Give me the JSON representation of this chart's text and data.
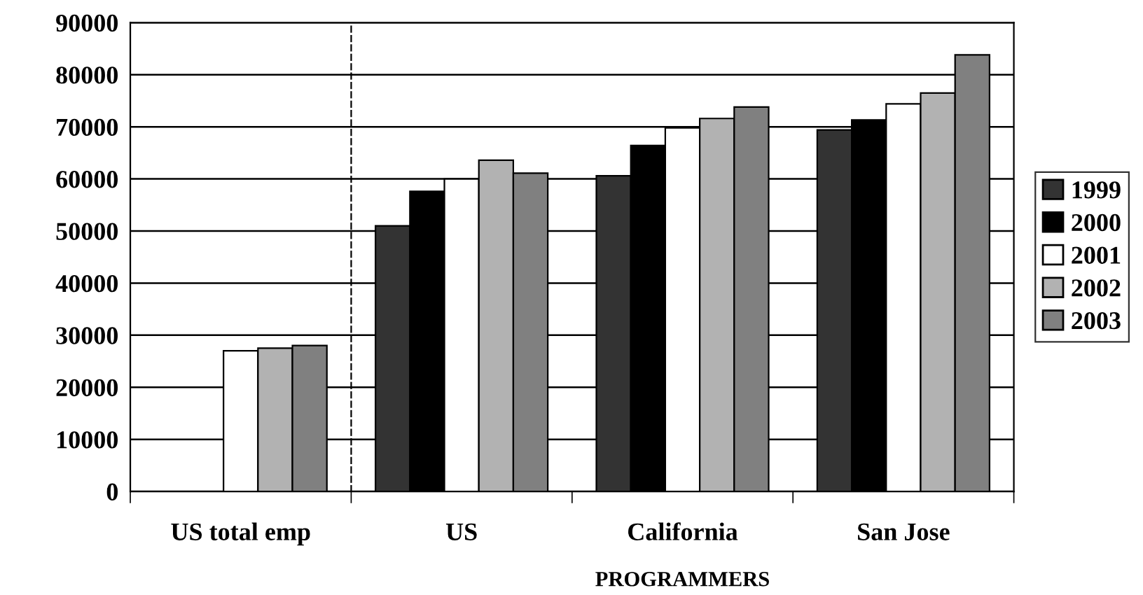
{
  "chart_data": {
    "type": "bar",
    "categories": [
      "US total emp",
      "US",
      "California",
      "San Jose"
    ],
    "series": [
      {
        "name": "1999",
        "color": "#333333",
        "values": [
          null,
          51000,
          60600,
          69400
        ]
      },
      {
        "name": "2000",
        "color": "#000000",
        "values": [
          null,
          57600,
          66400,
          71300
        ]
      },
      {
        "name": "2001",
        "color": "#ffffff",
        "values": [
          27000,
          60000,
          69800,
          74400
        ]
      },
      {
        "name": "2002",
        "color": "#b2b2b2",
        "values": [
          27500,
          63600,
          71600,
          76500
        ]
      },
      {
        "name": "2003",
        "color": "#808080",
        "values": [
          28000,
          61100,
          73800,
          83800
        ]
      }
    ],
    "ylim": [
      0,
      90000
    ],
    "yticks": [
      0,
      10000,
      20000,
      30000,
      40000,
      50000,
      60000,
      70000,
      80000,
      90000
    ],
    "grid": "y",
    "legend": "right",
    "annotations": [
      "PROGRAMMERS"
    ]
  }
}
